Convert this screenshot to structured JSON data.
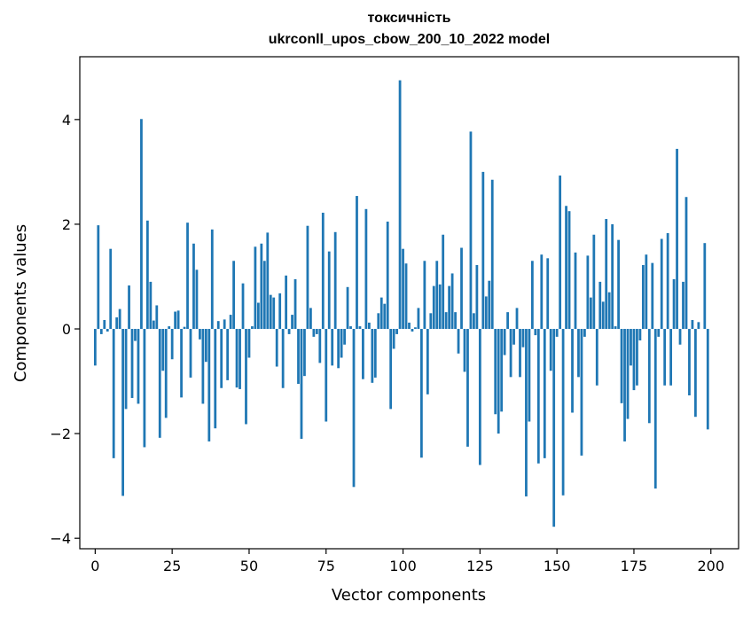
{
  "chart_data": {
    "type": "bar",
    "title": "токсичність",
    "subtitle": "ukrconll_upos_cbow_200_10_2022 model",
    "xlabel": "Vector components",
    "ylabel": "Components values",
    "xlim": [
      -5,
      209
    ],
    "ylim": [
      -4.2,
      5.2
    ],
    "xticks": [
      0,
      25,
      50,
      75,
      100,
      125,
      150,
      175,
      200
    ],
    "xtick_labels": [
      "0",
      "25",
      "50",
      "75",
      "100",
      "125",
      "150",
      "175",
      "200"
    ],
    "yticks": [
      -4,
      -2,
      0,
      2,
      4
    ],
    "ytick_labels": [
      "−4",
      "−2",
      "0",
      "2",
      "4"
    ],
    "bar_color": "#1f77b4",
    "grid": false,
    "legend": "none",
    "x": [
      0,
      1,
      2,
      3,
      4,
      5,
      6,
      7,
      8,
      9,
      10,
      11,
      12,
      13,
      14,
      15,
      16,
      17,
      18,
      19,
      20,
      21,
      22,
      23,
      24,
      25,
      26,
      27,
      28,
      29,
      30,
      31,
      32,
      33,
      34,
      35,
      36,
      37,
      38,
      39,
      40,
      41,
      42,
      43,
      44,
      45,
      46,
      47,
      48,
      49,
      50,
      51,
      52,
      53,
      54,
      55,
      56,
      57,
      58,
      59,
      60,
      61,
      62,
      63,
      64,
      65,
      66,
      67,
      68,
      69,
      70,
      71,
      72,
      73,
      74,
      75,
      76,
      77,
      78,
      79,
      80,
      81,
      82,
      83,
      84,
      85,
      86,
      87,
      88,
      89,
      90,
      91,
      92,
      93,
      94,
      95,
      96,
      97,
      98,
      99,
      100,
      101,
      102,
      103,
      104,
      105,
      106,
      107,
      108,
      109,
      110,
      111,
      112,
      113,
      114,
      115,
      116,
      117,
      118,
      119,
      120,
      121,
      122,
      123,
      124,
      125,
      126,
      127,
      128,
      129,
      130,
      131,
      132,
      133,
      134,
      135,
      136,
      137,
      138,
      139,
      140,
      141,
      142,
      143,
      144,
      145,
      146,
      147,
      148,
      149,
      150,
      151,
      152,
      153,
      154,
      155,
      156,
      157,
      158,
      159,
      160,
      161,
      162,
      163,
      164,
      165,
      166,
      167,
      168,
      169,
      170,
      171,
      172,
      173,
      174,
      175,
      176,
      177,
      178,
      179,
      180,
      181,
      182,
      183,
      184,
      185,
      186,
      187,
      188,
      189,
      190,
      191,
      192,
      193,
      194,
      195,
      196,
      197,
      198,
      199
    ],
    "values": [
      -0.7,
      1.98,
      -0.1,
      0.17,
      -0.05,
      1.53,
      -2.47,
      0.22,
      0.38,
      -3.19,
      -1.53,
      0.83,
      -1.32,
      -0.23,
      -1.43,
      4.01,
      -2.26,
      2.07,
      0.9,
      0.16,
      0.45,
      -2.08,
      -0.8,
      -1.7,
      0.05,
      -0.58,
      0.33,
      0.35,
      -1.31,
      0.04,
      2.03,
      -0.93,
      1.63,
      1.13,
      -0.2,
      -1.43,
      -0.63,
      -2.15,
      1.9,
      -1.9,
      0.15,
      -1.13,
      0.18,
      -0.98,
      0.27,
      1.3,
      -1.12,
      -1.15,
      0.87,
      -1.82,
      -0.55,
      0.05,
      1.57,
      0.5,
      1.63,
      1.3,
      1.84,
      0.65,
      0.6,
      -0.72,
      0.68,
      -1.13,
      1.02,
      -0.1,
      0.27,
      0.95,
      -1.05,
      -2.1,
      -0.9,
      1.97,
      0.4,
      -0.15,
      -0.1,
      -0.65,
      2.22,
      -1.77,
      1.48,
      -0.7,
      1.85,
      -0.75,
      -0.55,
      -0.3,
      0.8,
      0.05,
      -3.02,
      2.54,
      0.05,
      -0.96,
      2.29,
      0.12,
      -1.03,
      -0.93,
      0.3,
      0.6,
      0.48,
      2.05,
      -1.53,
      -0.38,
      -0.1,
      4.75,
      1.53,
      1.25,
      0.12,
      -0.05,
      0.03,
      0.4,
      -2.46,
      1.3,
      -1.25,
      0.3,
      0.82,
      1.3,
      0.85,
      1.8,
      0.32,
      0.82,
      1.06,
      0.32,
      -0.47,
      1.55,
      -0.82,
      -2.25,
      3.77,
      0.3,
      1.22,
      -2.6,
      3.0,
      0.62,
      0.92,
      2.85,
      -1.63,
      -2.0,
      -1.58,
      -0.5,
      0.32,
      -0.92,
      -0.3,
      0.4,
      -0.92,
      -0.35,
      -3.2,
      -1.77,
      1.3,
      -0.12,
      -2.57,
      1.42,
      -2.47,
      1.35,
      -0.8,
      -3.78,
      -0.15,
      2.93,
      -3.18,
      2.35,
      2.25,
      -1.6,
      1.46,
      -0.92,
      -2.42,
      -0.15,
      1.4,
      0.6,
      1.8,
      -1.08,
      0.9,
      0.52,
      2.1,
      0.7,
      2.0,
      0.05,
      1.7,
      -1.42,
      -2.15,
      -1.72,
      -0.7,
      -1.17,
      -1.08,
      -0.22,
      1.22,
      1.42,
      -1.8,
      1.26,
      -3.05,
      -0.15,
      1.72,
      -1.08,
      1.83,
      -1.08,
      0.95,
      3.44,
      -0.3,
      0.9,
      2.52,
      -1.27,
      0.17,
      -1.68,
      0.13,
      0.0,
      1.64,
      -1.92
    ]
  }
}
